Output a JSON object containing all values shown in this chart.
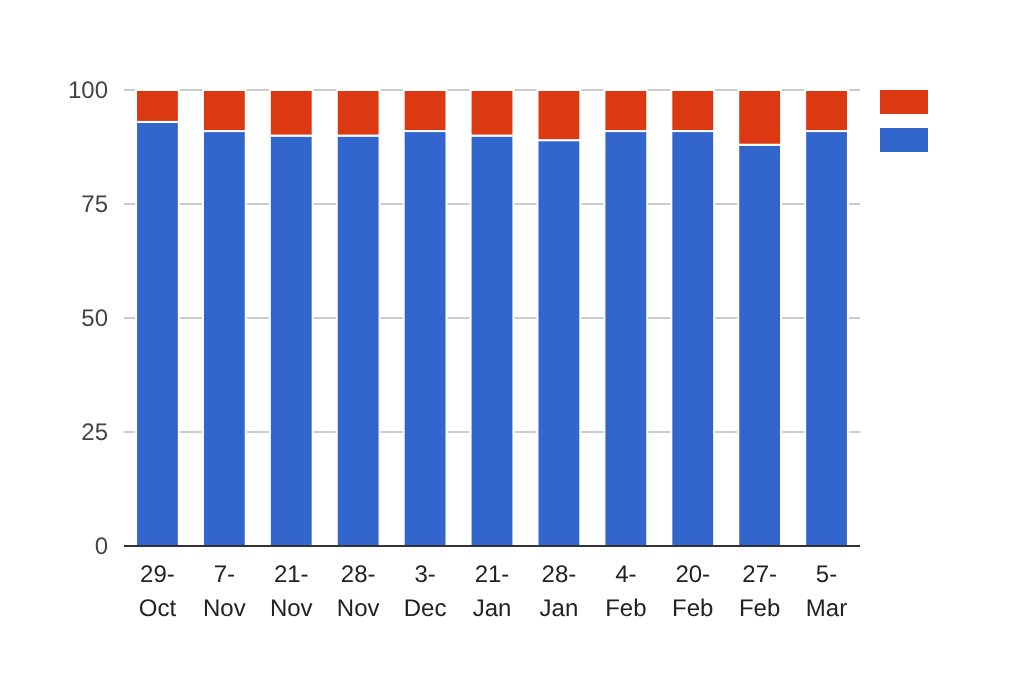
{
  "chart_data": {
    "type": "bar",
    "stacked": true,
    "categories": [
      "29-Oct",
      "7-Nov",
      "21-Nov",
      "28-Nov",
      "3-Dec",
      "21-Jan",
      "28-Jan",
      "4-Feb",
      "20-Feb",
      "27-Feb",
      "5-Mar"
    ],
    "series": [
      {
        "color": "#3366cc",
        "values": [
          93,
          91,
          90,
          90,
          91,
          90,
          89,
          91,
          91,
          88,
          91
        ]
      },
      {
        "color": "#dc3912",
        "values": [
          7,
          9,
          10,
          10,
          9,
          10,
          11,
          9,
          9,
          12,
          9
        ]
      }
    ],
    "ylim": [
      0,
      100
    ],
    "yticks": [
      0,
      25,
      50,
      75,
      100
    ],
    "grid": "y"
  }
}
